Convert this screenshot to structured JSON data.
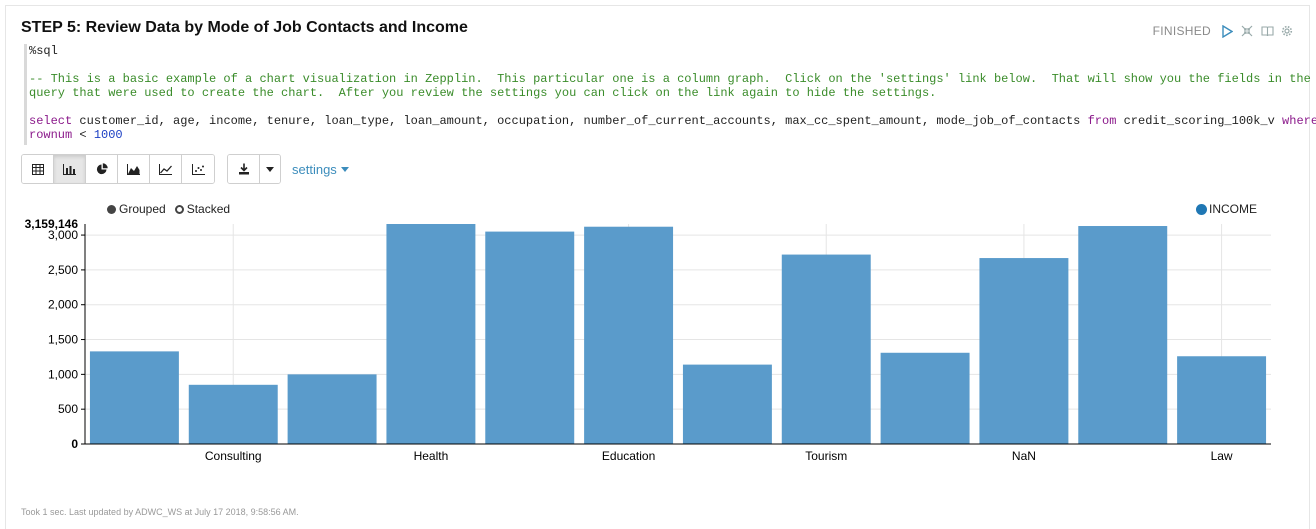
{
  "paragraph": {
    "title": "STEP 5: Review Data by Mode of Job Contacts and Income",
    "status": "FINISHED",
    "status_icons": [
      "play-icon",
      "collapse-icon",
      "book-icon",
      "gear-icon"
    ]
  },
  "editor": {
    "interpreter": "%sql",
    "comment_line1": "-- This is a basic example of a chart visualization in Zepplin.  This particular one is a column graph.  Click on the 'settings' link below.  That will show you the fields in the",
    "comment_line2": "query that were used to create the chart.  After you review the settings you can click on the link again to hide the settings.",
    "sql_select": "select",
    "sql_columns": " customer_id, age, income, tenure, loan_type, loan_amount, occupation, number_of_current_accounts, max_cc_spent_amount, mode_job_of_contacts ",
    "sql_from": "from",
    "sql_table": " credit_scoring_100k_v ",
    "sql_where": "where",
    "sql_line2_col": "rownum",
    "sql_line2_op": " < ",
    "sql_line2_val": "1000"
  },
  "toolbar": {
    "view_buttons": [
      "table-icon",
      "bar-chart-icon",
      "pie-chart-icon",
      "area-chart-icon",
      "line-chart-icon",
      "scatter-chart-icon"
    ],
    "active_view": "bar-chart-icon",
    "download_icon": "download-icon",
    "settings_label": "settings"
  },
  "chart_controls": {
    "grouped_label": "Grouped",
    "stacked_label": "Stacked",
    "selected_mode": "Grouped"
  },
  "chart_data": {
    "type": "bar",
    "series": [
      {
        "name": "INCOME",
        "color": "#5a9bcb",
        "values": [
          1330,
          850,
          1000,
          3159,
          3050,
          3120,
          1140,
          2720,
          1310,
          2670,
          3130,
          1260
        ]
      }
    ],
    "categories": [
      "",
      "Consulting",
      "",
      "Health",
      "",
      "Education",
      "",
      "Tourism",
      "",
      "NaN",
      "",
      "Law"
    ],
    "max_label": "3,159,146",
    "ylim": [
      0,
      3159
    ],
    "y_ticks": [
      "0",
      "500",
      "1,000",
      "1,500",
      "2,000",
      "2,500",
      "3,000"
    ],
    "grid": true,
    "legend": "top-right"
  },
  "footer": {
    "text": "Took 1 sec. Last updated by ADWC_WS at July 17 2018, 9:58:56 AM."
  }
}
